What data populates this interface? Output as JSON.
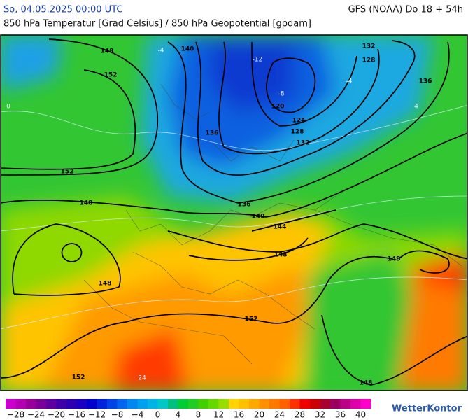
{
  "header": {
    "datetime": "So, 04.05.2025 00:00 UTC",
    "model": "GFS (NOAA) Do 18 + 54h",
    "subtitle": "850 hPa Temperatur [Grad Celsius] / 850 hPa Geopotential [gpdam]"
  },
  "map": {
    "geopotential_labels": [
      "148",
      "140",
      "132",
      "128",
      "136",
      "152",
      "120",
      "124",
      "128",
      "132",
      "136",
      "152",
      "148",
      "136",
      "140",
      "144",
      "148",
      "148",
      "148",
      "152",
      "152",
      "148"
    ],
    "temperature_labels": [
      "-12",
      "-8",
      "-4",
      "4",
      "0",
      "-4",
      "24"
    ]
  },
  "legend": {
    "ticks": [
      "−28",
      "−24",
      "−20",
      "−16",
      "−12",
      "−8",
      "−4",
      "0",
      "4",
      "8",
      "12",
      "16",
      "20",
      "24",
      "28",
      "32",
      "36",
      "40"
    ]
  },
  "logo": "WetterKontor"
}
